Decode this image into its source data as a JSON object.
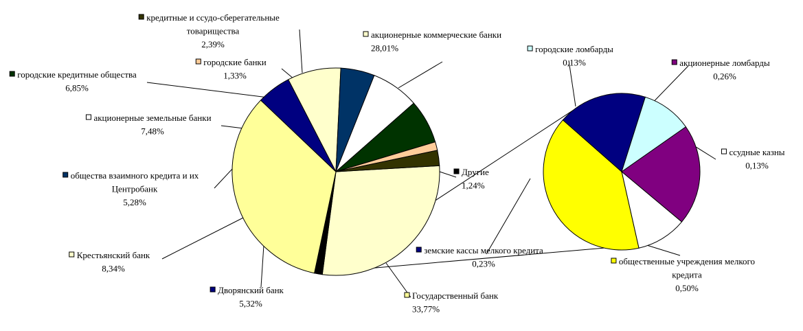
{
  "chart_data": {
    "type": "bar-of-pie",
    "main_pie": {
      "slices": [
        {
          "label": "акционерные коммерческие банки",
          "value": 28.01,
          "value_text": "28,01%",
          "color": "#ffffcc"
        },
        {
          "label": "Другие",
          "value": 1.24,
          "value_text": "1,24%",
          "color": "#000000"
        },
        {
          "label": "Государственный банк",
          "value": 33.77,
          "value_text": "33,77%",
          "color": "#ffff99"
        },
        {
          "label": "Дворянский банк",
          "value": 5.32,
          "value_text": "5,32%",
          "color": "#000080"
        },
        {
          "label": "Крестьянский банк",
          "value": 8.34,
          "value_text": "8,34%",
          "color": "#ffffcc"
        },
        {
          "label": "общества взаимного кредита и их",
          "label_line2": "Центробанк",
          "value": 5.28,
          "value_text": "5,28%",
          "color": "#003366"
        },
        {
          "label": "акционерные земельные банки",
          "value": 7.48,
          "value_text": "7,48%",
          "color": "#ffffff"
        },
        {
          "label": "городские кредитные общества",
          "value": 6.85,
          "value_text": "6,85%",
          "color": "#003300"
        },
        {
          "label": "городские банки",
          "value": 1.33,
          "value_text": "1,33%",
          "color": "#ffcc99"
        },
        {
          "label": "кредитные и ссудо-сберегательные",
          "label_line2": "товарищества",
          "value": 2.39,
          "value_text": "2,39%",
          "color": "#333300"
        }
      ]
    },
    "secondary_pie": {
      "slices": [
        {
          "label": "акционерные ломбарды",
          "value": 0.26,
          "value_text": "0,26%",
          "color": "#800080"
        },
        {
          "label": "ссудные казны",
          "value": 0.13,
          "value_text": "0,13%",
          "color": "#ffffff"
        },
        {
          "label": "общественные учреждения мелкого",
          "label_line2": "кредита",
          "value": 0.5,
          "value_text": "0,50%",
          "color": "#ffff00"
        },
        {
          "label": "земские кассы мелкого кредита",
          "value": 0.23,
          "value_text": "0,23%",
          "color": "#000080"
        },
        {
          "label": "городские ломбарды",
          "value": 0.13,
          "value_text": "0,13%",
          "color": "#ccffff"
        }
      ]
    }
  }
}
